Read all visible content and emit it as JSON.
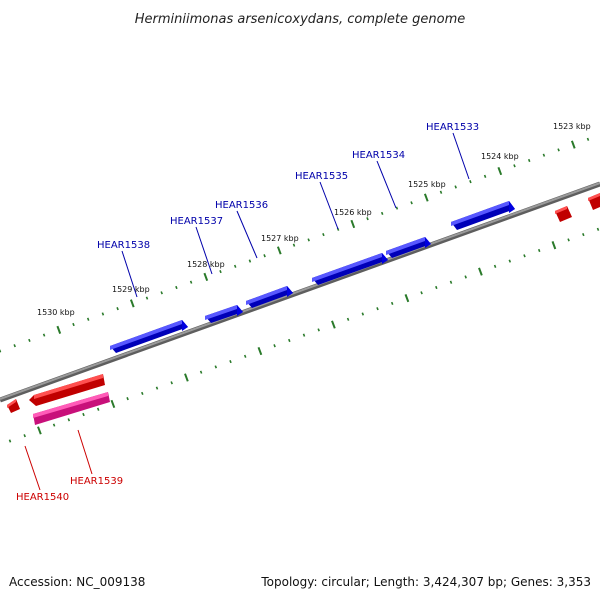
{
  "title": "Herminiimonas arsenicoxydans, complete genome",
  "footer": {
    "accession": "Accession: NC_009138",
    "summary": "Topology: circular; Length: 3,424,307 bp; Genes: 3,353"
  },
  "colors": {
    "forward_gene": "#1010e0",
    "reverse_gene": "#e01010",
    "rna_gene": "#e0208a",
    "backbone": "#808080",
    "ticks": "#2a7a2a",
    "forward_label": "#0000aa",
    "reverse_label": "#cc0000"
  },
  "ticks": [
    {
      "label": "1523 kbp"
    },
    {
      "label": "1524 kbp"
    },
    {
      "label": "1525 kbp"
    },
    {
      "label": "1526 kbp"
    },
    {
      "label": "1527 kbp"
    },
    {
      "label": "1528 kbp"
    },
    {
      "label": "1529 kbp"
    },
    {
      "label": "1530 kbp"
    }
  ],
  "forward_genes": [
    {
      "name": "HEAR1533"
    },
    {
      "name": "HEAR1534"
    },
    {
      "name": "HEAR1535"
    },
    {
      "name": "HEAR1536"
    },
    {
      "name": "HEAR1537"
    },
    {
      "name": "HEAR1538"
    }
  ],
  "reverse_genes": [
    {
      "name": "HEAR1539"
    },
    {
      "name": "HEAR1540"
    }
  ]
}
